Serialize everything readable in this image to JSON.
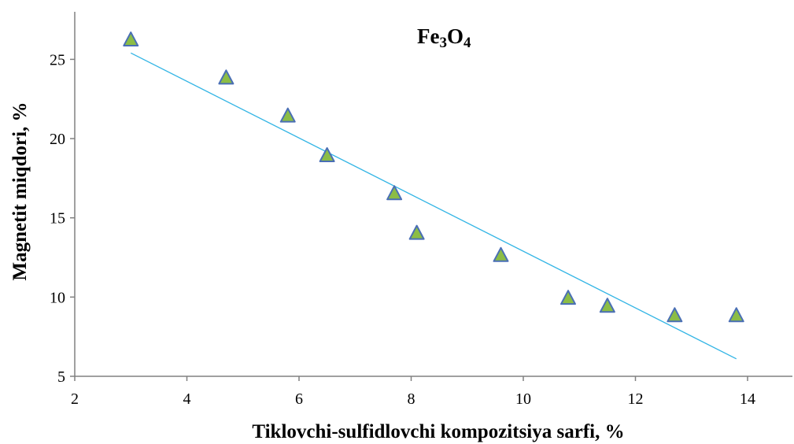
{
  "chart_data": {
    "type": "scatter",
    "title": {
      "parts": [
        {
          "text": "Fe",
          "sub": false
        },
        {
          "text": "3",
          "sub": true
        },
        {
          "text": "O",
          "sub": false
        },
        {
          "text": "4",
          "sub": true
        }
      ]
    },
    "xlabel": "Tiklovchi-sulfidlovchi kompozitsiya sarfi, %",
    "ylabel": "Magnetit miqdori, %",
    "xlim": [
      2,
      14.8
    ],
    "ylim": [
      5,
      28
    ],
    "xticks": [
      2,
      4,
      6,
      8,
      10,
      12,
      14
    ],
    "yticks": [
      5,
      10,
      15,
      20,
      25
    ],
    "grid": false,
    "legend": "none",
    "series": [
      {
        "marker": "triangle",
        "marker_fill": "#8cbd45",
        "marker_stroke": "#4a6fb5",
        "points": [
          {
            "x": 3.0,
            "y": 26.2
          },
          {
            "x": 4.7,
            "y": 23.8
          },
          {
            "x": 5.8,
            "y": 21.4
          },
          {
            "x": 6.5,
            "y": 18.9
          },
          {
            "x": 7.7,
            "y": 16.5
          },
          {
            "x": 8.1,
            "y": 14.0
          },
          {
            "x": 9.6,
            "y": 12.6
          },
          {
            "x": 10.8,
            "y": 9.9
          },
          {
            "x": 11.5,
            "y": 9.4
          },
          {
            "x": 12.7,
            "y": 8.8
          },
          {
            "x": 13.8,
            "y": 8.8
          }
        ]
      }
    ],
    "trendline": {
      "type": "linear",
      "color": "#33b5e5",
      "from": {
        "x": 3.0,
        "y": 25.4
      },
      "to": {
        "x": 13.8,
        "y": 6.1
      }
    }
  }
}
